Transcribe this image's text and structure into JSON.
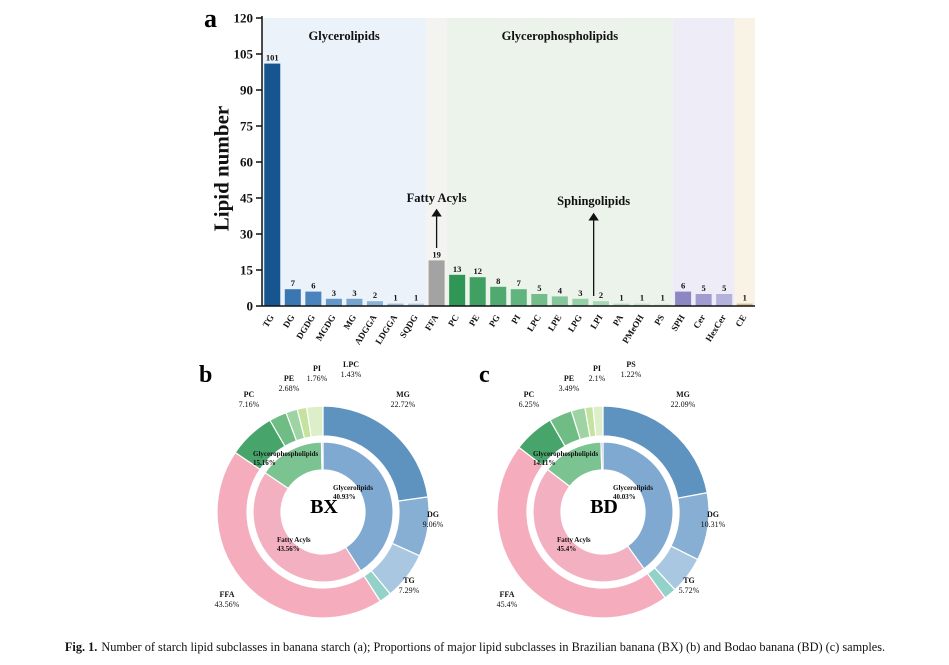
{
  "figure": {
    "caption_label": "Fig. 1.",
    "caption_text": "Number of starch lipid subclasses in banana starch (a); Proportions of major lipid subclasses in Brazilian banana (BX) (b) and Bodao banana (BD) (c) samples."
  },
  "panel_a": {
    "label": "a",
    "ylabel": "Lipid number"
  },
  "panel_b": {
    "label": "b"
  },
  "panel_c": {
    "label": "c"
  },
  "chart_data": [
    {
      "id": "lipid-number-bar-chart",
      "type": "bar",
      "ylabel": "Lipid number",
      "ylim": [
        0,
        120
      ],
      "yticks": [
        0,
        15,
        30,
        45,
        60,
        75,
        90,
        105,
        120
      ],
      "categories": [
        "TG",
        "DG",
        "DGDG",
        "MGDG",
        "MG",
        "ADGGA",
        "LDGGA",
        "SQDG",
        "FFA",
        "PC",
        "PE",
        "PG",
        "PI",
        "LPC",
        "LPE",
        "LPG",
        "LPI",
        "PA",
        "PMeOH",
        "PS",
        "SPH",
        "Cer",
        "HexCer",
        "CE"
      ],
      "values": [
        101,
        7,
        6,
        3,
        3,
        2,
        1,
        1,
        19,
        13,
        12,
        8,
        7,
        5,
        4,
        3,
        2,
        1,
        1,
        1,
        6,
        5,
        5,
        1
      ],
      "bar_colors": [
        "#16558f",
        "#3a77b2",
        "#4b84bc",
        "#6496c7",
        "#77a4cf",
        "#8ab1d7",
        "#9dbede",
        "#b0cbe5",
        "#a3a3a3",
        "#2f9655",
        "#3fa062",
        "#50aa70",
        "#61b47e",
        "#73bd8b",
        "#84c699",
        "#95cfa6",
        "#a6d8b4",
        "#b7e0c1",
        "#c8e8ce",
        "#d8efdb",
        "#8c87c3",
        "#a09cd0",
        "#b4b1dc",
        "#d4bc8e"
      ],
      "groups": [
        {
          "title": "Glycerolipids",
          "start": 0,
          "count": 8,
          "bg": "#ecf2f9",
          "style": "title"
        },
        {
          "title": "Fatty Acyls",
          "start": 8,
          "count": 1,
          "bg": "#f3f3f0",
          "style": "arrow"
        },
        {
          "title": "Glycerophospholipids",
          "start": 9,
          "count": 11,
          "bg": "#ebf3ea",
          "style": "title"
        },
        {
          "title": "Sphingolipids",
          "start": 20,
          "count": 3,
          "bg": "#eeecf7",
          "style": "arrow"
        },
        {
          "title": "",
          "start": 23,
          "count": 1,
          "bg": "#f8f3e4",
          "style": "none"
        }
      ]
    },
    {
      "id": "bx-donut",
      "type": "pie",
      "variant": "double-ring-donut",
      "center_label": "BX",
      "outer_ring": [
        {
          "label": "MG",
          "pct": "22.72%",
          "value": 22.72,
          "color": "#5e93c0"
        },
        {
          "label": "DG",
          "pct": "9.06%",
          "value": 9.06,
          "color": "#86afd3"
        },
        {
          "label": "TG",
          "pct": "7.29%",
          "value": 7.29,
          "color": "#a9c7e0"
        },
        {
          "label": "",
          "pct": "",
          "value": 1.86,
          "color": "#93d2c8"
        },
        {
          "label": "FFA",
          "pct": "43.56%",
          "value": 43.56,
          "color": "#f5adbe"
        },
        {
          "label": "PC",
          "pct": "7.16%",
          "value": 7.16,
          "color": "#47a56b"
        },
        {
          "label": "PE",
          "pct": "2.68%",
          "value": 2.68,
          "color": "#6fbc84"
        },
        {
          "label": "PI",
          "pct": "1.76%",
          "value": 1.76,
          "color": "#9ed3a4"
        },
        {
          "label": "LPC",
          "pct": "1.43%",
          "value": 1.43,
          "color": "#c4e39f"
        },
        {
          "label": "",
          "pct": "",
          "value": 2.48,
          "color": "#ddefc9"
        }
      ],
      "inner_ring": [
        {
          "label": "Glycerolipids",
          "pct": "40.93%",
          "value": 40.93,
          "color": "#7fa9d1"
        },
        {
          "label": "Fatty Acyls",
          "pct": "43.56%",
          "value": 43.56,
          "color": "#f3b0c0"
        },
        {
          "label": "Glycerophospholipids",
          "pct": "15.16%",
          "value": 15.16,
          "color": "#7cc392"
        },
        {
          "label": "",
          "pct": "",
          "value": 0.35,
          "color": "#b9b0d8"
        }
      ]
    },
    {
      "id": "bd-donut",
      "type": "pie",
      "variant": "double-ring-donut",
      "center_label": "BD",
      "outer_ring": [
        {
          "label": "MG",
          "pct": "22.09%",
          "value": 22.09,
          "color": "#5e93c0"
        },
        {
          "label": "DG",
          "pct": "10.31%",
          "value": 10.31,
          "color": "#86afd3"
        },
        {
          "label": "TG",
          "pct": "5.72%",
          "value": 5.72,
          "color": "#a9c7e0"
        },
        {
          "label": "",
          "pct": "",
          "value": 1.91,
          "color": "#93d2c8"
        },
        {
          "label": "FFA",
          "pct": "45.4%",
          "value": 45.4,
          "color": "#f5adbe"
        },
        {
          "label": "PC",
          "pct": "6.25%",
          "value": 6.25,
          "color": "#47a56b"
        },
        {
          "label": "PE",
          "pct": "3.49%",
          "value": 3.49,
          "color": "#6fbc84"
        },
        {
          "label": "PI",
          "pct": "2.1%",
          "value": 2.1,
          "color": "#9ed3a4"
        },
        {
          "label": "PS",
          "pct": "1.22%",
          "value": 1.22,
          "color": "#c4e39f"
        },
        {
          "label": "",
          "pct": "",
          "value": 1.51,
          "color": "#ddefc9"
        }
      ],
      "inner_ring": [
        {
          "label": "Glycerolipids",
          "pct": "40.03%",
          "value": 40.03,
          "color": "#7fa9d1"
        },
        {
          "label": "Fatty Acyls",
          "pct": "45.4%",
          "value": 45.4,
          "color": "#f3b0c0"
        },
        {
          "label": "Glycerophospholipids",
          "pct": "14.11%",
          "value": 14.11,
          "color": "#7cc392"
        },
        {
          "label": "",
          "pct": "",
          "value": 0.46,
          "color": "#b9b0d8"
        }
      ]
    }
  ]
}
